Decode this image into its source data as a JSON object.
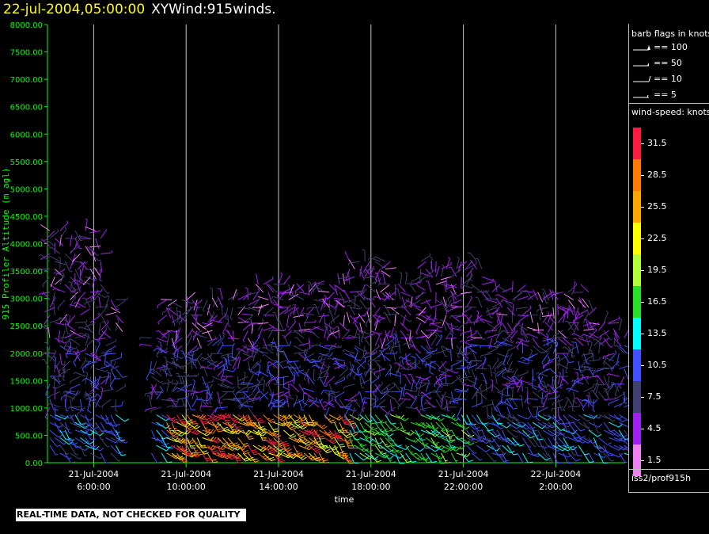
{
  "header": {
    "datetime": "22-jul-2004,05:00:00",
    "title": "XYWind:915winds."
  },
  "footer_note": "REAL-TIME DATA, NOT CHECKED FOR QUALITY",
  "legend": {
    "barb_title": "barb flags in knots",
    "flags": [
      {
        "label": "== 100",
        "kind": "pennant"
      },
      {
        "label": "== 50",
        "kind": "half-pennant"
      },
      {
        "label": "== 10",
        "kind": "full-barb"
      },
      {
        "label": "== 5",
        "kind": "half-barb"
      }
    ],
    "speed_title": "wind-speed: knots",
    "colorbar": [
      {
        "label": "31.5",
        "color": "#ff1a40"
      },
      {
        "label": "28.5",
        "color": "#ff7a00"
      },
      {
        "label": "25.5",
        "color": "#ffa500"
      },
      {
        "label": "22.5",
        "color": "#ffff00"
      },
      {
        "label": "19.5",
        "color": "#b4ff3c"
      },
      {
        "label": "16.5",
        "color": "#28e028"
      },
      {
        "label": "13.5",
        "color": "#00ffff"
      },
      {
        "label": "10.5",
        "color": "#4050ff"
      },
      {
        "label": "7.5",
        "color": "#404070"
      },
      {
        "label": "4.5",
        "color": "#a020f0"
      },
      {
        "label": "1.5",
        "color": "#ee82ee"
      }
    ],
    "source": "iss2/prof915h"
  },
  "chart_data": {
    "type": "scatter",
    "subtype": "wind-barb time-height plot",
    "ylabel": "915 Profiler Altitude (m agl)",
    "xlabel": "time",
    "ylim": [
      0,
      8000
    ],
    "yticks": [
      "0.00",
      "500.00",
      "1000.00",
      "1500.00",
      "2000.00",
      "2500.00",
      "3000.00",
      "3500.00",
      "4000.00",
      "4500.00",
      "5000.00",
      "5500.00",
      "6000.00",
      "6500.00",
      "7000.00",
      "7500.00",
      "8000.00"
    ],
    "xlim_hours": [
      4.0,
      29.0
    ],
    "xticks": [
      {
        "date": "21-Jul-2004",
        "time": "6:00:00",
        "hour": 6
      },
      {
        "date": "21-Jul-2004",
        "time": "10:00:00",
        "hour": 10
      },
      {
        "date": "21-Jul-2004",
        "time": "14:00:00",
        "hour": 14
      },
      {
        "date": "21-Jul-2004",
        "time": "18:00:00",
        "hour": 18
      },
      {
        "date": "21-Jul-2004",
        "time": "22:00:00",
        "hour": 22
      },
      {
        "date": "22-Jul-2004",
        "time": "2:00:00",
        "hour": 26
      }
    ],
    "grid": "vertical lines at x ticks",
    "colors": {
      "axis": "#00ff00",
      "text": "#ffffff",
      "grid": "#c8c8c8",
      "background": "#000000"
    }
  }
}
